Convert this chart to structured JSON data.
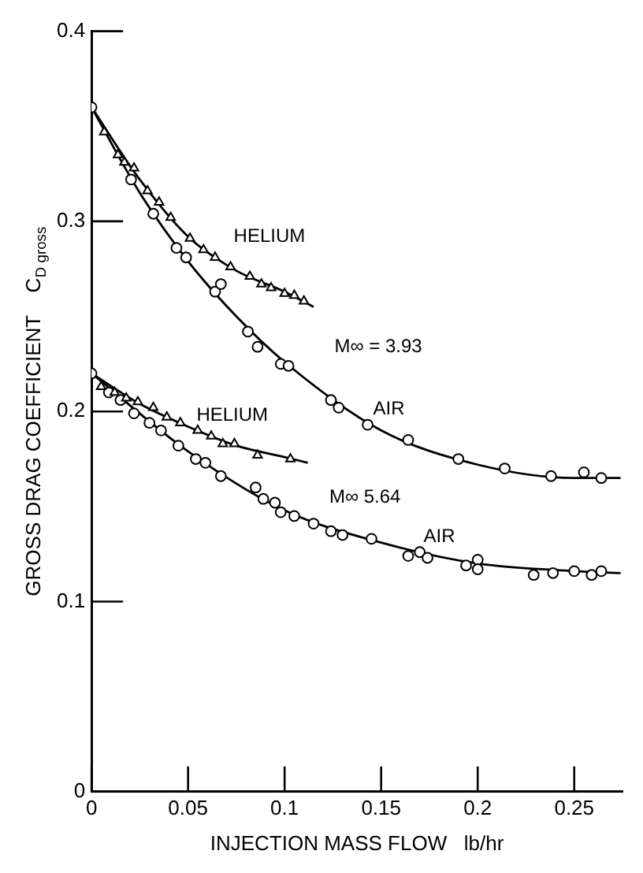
{
  "chart_data": {
    "type": "scatter",
    "xlabel": "INJECTION MASS FLOW   lb/hr",
    "ylabel": "GROSS DRAG COEFFICIENT    C$_{D gross}$",
    "xlim": [
      0,
      0.275
    ],
    "ylim": [
      0,
      0.4
    ],
    "xticks": [
      0,
      0.05,
      0.1,
      0.15,
      0.2,
      0.25
    ],
    "yticks": [
      0,
      0.1,
      0.2,
      0.3,
      0.4
    ],
    "grid": false,
    "legend": false,
    "series": [
      {
        "marker": "circle",
        "color": "#000000",
        "x": [
          0,
          0.0205,
          0.032,
          0.044,
          0.049,
          0.064,
          0.067,
          0.081,
          0.086,
          0.098,
          0.102,
          0.124,
          0.128,
          0.143,
          0.164,
          0.19,
          0.214,
          0.238,
          0.255,
          0.264
        ],
        "values": [
          0.36,
          0.322,
          0.304,
          0.286,
          0.281,
          0.263,
          0.267,
          0.242,
          0.234,
          0.225,
          0.224,
          0.206,
          0.202,
          0.193,
          0.185,
          0.175,
          0.17,
          0.166,
          0.168,
          0.165
        ]
      },
      {
        "marker": "triangle",
        "color": "#000000",
        "x": [
          0.0066,
          0.0137,
          0.017,
          0.022,
          0.029,
          0.035,
          0.041,
          0.051,
          0.058,
          0.064,
          0.072,
          0.082,
          0.088,
          0.093,
          0.1,
          0.105,
          0.11
        ],
        "values": [
          0.347,
          0.335,
          0.331,
          0.328,
          0.316,
          0.31,
          0.302,
          0.291,
          0.285,
          0.281,
          0.276,
          0.271,
          0.267,
          0.265,
          0.262,
          0.261,
          0.258
        ]
      },
      {
        "marker": "circle",
        "color": "#000000",
        "x": [
          0,
          0.009,
          0.015,
          0.022,
          0.03,
          0.036,
          0.045,
          0.054,
          0.059,
          0.067,
          0.085,
          0.089,
          0.095,
          0.098,
          0.105,
          0.115,
          0.124,
          0.13,
          0.145,
          0.164,
          0.17,
          0.174,
          0.194,
          0.2,
          0.2,
          0.229,
          0.239,
          0.25,
          0.259,
          0.264
        ],
        "values": [
          0.22,
          0.21,
          0.206,
          0.199,
          0.194,
          0.19,
          0.182,
          0.175,
          0.173,
          0.166,
          0.16,
          0.154,
          0.152,
          0.147,
          0.145,
          0.141,
          0.137,
          0.135,
          0.133,
          0.124,
          0.126,
          0.123,
          0.119,
          0.122,
          0.117,
          0.114,
          0.115,
          0.116,
          0.114,
          0.116
        ]
      },
      {
        "marker": "triangle",
        "color": "#000000",
        "x": [
          0.005,
          0.012,
          0.018,
          0.024,
          0.032,
          0.039,
          0.046,
          0.055,
          0.062,
          0.068,
          0.074,
          0.086,
          0.103
        ],
        "values": [
          0.213,
          0.21,
          0.207,
          0.205,
          0.202,
          0.197,
          0.194,
          0.19,
          0.187,
          0.183,
          0.183,
          0.177,
          0.175
        ]
      },
      {
        "type": "line",
        "marker": "none",
        "color": "#000000",
        "x": [
          0,
          0.025,
          0.05,
          0.075,
          0.1,
          0.15,
          0.2,
          0.25,
          0.274
        ],
        "values": [
          0.36,
          0.315,
          0.279,
          0.25,
          0.226,
          0.19,
          0.172,
          0.165,
          0.165
        ]
      },
      {
        "type": "line",
        "marker": "none",
        "color": "#000000",
        "x": [
          0,
          0.025,
          0.05,
          0.075,
          0.1,
          0.115
        ],
        "values": [
          0.36,
          0.322,
          0.292,
          0.274,
          0.263,
          0.255
        ]
      },
      {
        "type": "line",
        "marker": "none",
        "color": "#000000",
        "x": [
          0,
          0.05,
          0.1,
          0.15,
          0.2,
          0.25,
          0.274
        ],
        "values": [
          0.22,
          0.179,
          0.148,
          0.131,
          0.12,
          0.116,
          0.115
        ]
      },
      {
        "type": "line",
        "marker": "none",
        "color": "#000000",
        "x": [
          0,
          0.025,
          0.05,
          0.075,
          0.1,
          0.112
        ],
        "values": [
          0.22,
          0.204,
          0.192,
          0.182,
          0.176,
          0.173
        ]
      }
    ],
    "annotations": [
      "HELIUM",
      "M∞ = 3.93",
      "AIR",
      "HELIUM",
      "M∞ 5.64",
      "AIR"
    ]
  }
}
